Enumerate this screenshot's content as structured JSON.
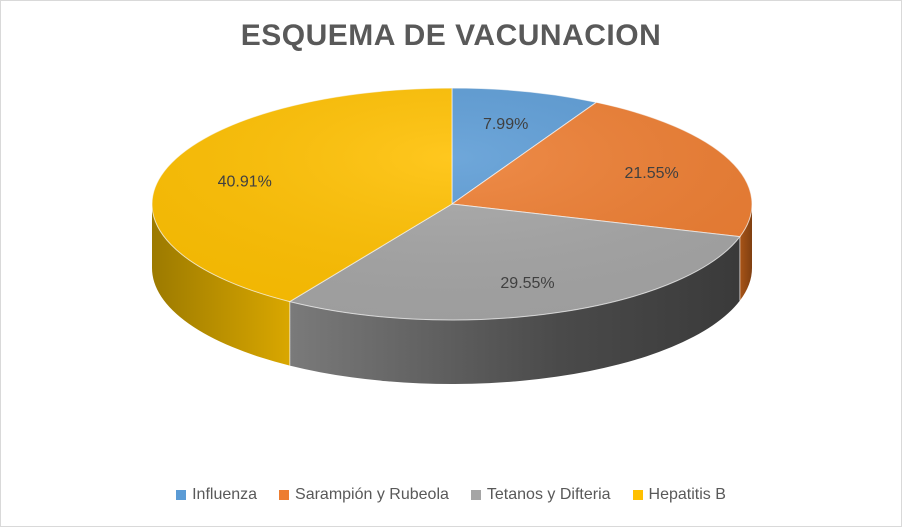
{
  "chart_data": {
    "type": "pie",
    "title": "ESQUEMA DE VACUNACION",
    "categories": [
      "Influenza",
      "Sarampión y Rubeola",
      "Tetanos y Difteria",
      "Hepatitis B"
    ],
    "values": [
      7.99,
      21.55,
      29.55,
      40.91
    ],
    "labels": [
      "7.99%",
      "21.55%",
      "29.55%",
      "40.91%"
    ],
    "colors": [
      "#5B9BD5",
      "#ED7D31",
      "#A5A5A5",
      "#FFC000"
    ],
    "side_colors": [
      "#3E7AB5",
      "#B85E1F",
      "#595959",
      "#C89600"
    ],
    "legend_position": "bottom",
    "style": "3d"
  }
}
